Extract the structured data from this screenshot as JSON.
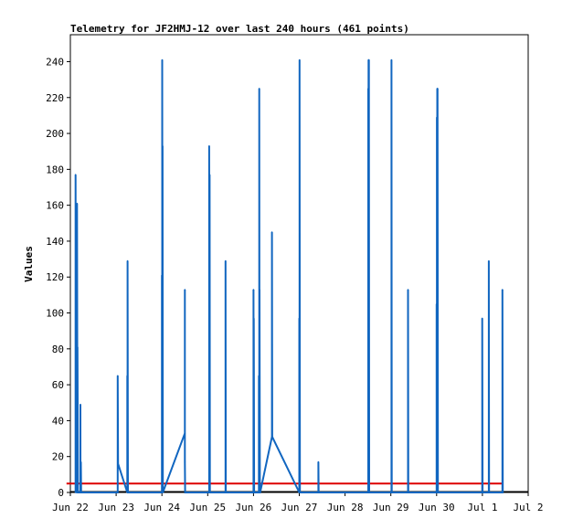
{
  "chart_data": {
    "type": "line",
    "title": "Telemetry for JF2HMJ-12 over last 240 hours (461 points)",
    "xlabel": "",
    "ylabel": "Values",
    "ylim": [
      0,
      255
    ],
    "yticks": [
      0,
      20,
      40,
      60,
      80,
      100,
      120,
      140,
      160,
      180,
      200,
      220,
      240
    ],
    "xlim": [
      "2023-06-22T00:00",
      "2023-07-02T00:00"
    ],
    "xtick_labels": [
      "Jun 22",
      "Jun 23",
      "Jun 24",
      "Jun 25",
      "Jun 26",
      "Jun 27",
      "Jun 28",
      "Jun 29",
      "Jun 30",
      "Jul 1",
      "Jul 2"
    ],
    "xtick_dates": [
      "2023-06-22T00:00",
      "2023-06-23T00:00",
      "2023-06-24T00:00",
      "2023-06-25T00:00",
      "2023-06-26T00:00",
      "2023-06-27T00:00",
      "2023-06-28T00:00",
      "2023-06-29T00:00",
      "2023-06-30T00:00",
      "2023-07-01T00:00",
      "2023-07-02T00:00"
    ],
    "grid": false,
    "colors": {
      "series_main": "#1166c0",
      "series_ref": "#dd0000",
      "baseline": "#000000"
    },
    "series": [
      {
        "values": [
          [
            "2023-06-22T02:45",
            0
          ],
          [
            "2023-06-22T02:45",
            177
          ],
          [
            "2023-06-22T03:00",
            0
          ],
          [
            "2023-06-22T03:00",
            97
          ],
          [
            "2023-06-22T03:15",
            0
          ],
          [
            "2023-06-22T03:15",
            145
          ],
          [
            "2023-06-22T03:30",
            0
          ],
          [
            "2023-06-22T03:30",
            161
          ],
          [
            "2023-06-22T03:45",
            0
          ],
          [
            "2023-06-22T03:45",
            81
          ],
          [
            "2023-06-22T04:00",
            0
          ],
          [
            "2023-06-22T05:15",
            0
          ],
          [
            "2023-06-22T05:15",
            49
          ],
          [
            "2023-06-22T05:20",
            0
          ],
          [
            "2023-06-22T05:30",
            0
          ],
          [
            "2023-06-22T05:30",
            17
          ],
          [
            "2023-06-22T05:40",
            0
          ],
          [
            "2023-06-23T00:50",
            0
          ],
          [
            "2023-06-23T00:50",
            65
          ],
          [
            "2023-06-23T01:00",
            16
          ],
          [
            "2023-06-23T05:50",
            0
          ],
          [
            "2023-06-23T05:50",
            65
          ],
          [
            "2023-06-23T06:00",
            0
          ],
          [
            "2023-06-23T06:00",
            129
          ],
          [
            "2023-06-23T06:10",
            0
          ],
          [
            "2023-06-24T00:00",
            0
          ],
          [
            "2023-06-24T00:00",
            121
          ],
          [
            "2023-06-24T00:10",
            0
          ],
          [
            "2023-06-24T00:10",
            241
          ],
          [
            "2023-06-24T00:20",
            0
          ],
          [
            "2023-06-24T00:20",
            193
          ],
          [
            "2023-06-24T00:30",
            0
          ],
          [
            "2023-06-24T12:00",
            33
          ],
          [
            "2023-06-24T12:00",
            113
          ],
          [
            "2023-06-24T12:00",
            17
          ],
          [
            "2023-06-24T12:10",
            0
          ],
          [
            "2023-06-25T00:45",
            0
          ],
          [
            "2023-06-25T00:45",
            193
          ],
          [
            "2023-06-25T01:00",
            0
          ],
          [
            "2023-06-25T01:00",
            177
          ],
          [
            "2023-06-25T01:10",
            0
          ],
          [
            "2023-06-25T09:20",
            0
          ],
          [
            "2023-06-25T09:20",
            129
          ],
          [
            "2023-06-25T09:30",
            0
          ],
          [
            "2023-06-26T00:00",
            0
          ],
          [
            "2023-06-26T00:00",
            113
          ],
          [
            "2023-06-26T00:10",
            0
          ],
          [
            "2023-06-26T00:10",
            97
          ],
          [
            "2023-06-26T00:20",
            0
          ],
          [
            "2023-06-26T02:50",
            0
          ],
          [
            "2023-06-26T02:50",
            65
          ],
          [
            "2023-06-26T03:00",
            0
          ],
          [
            "2023-06-26T03:00",
            225
          ],
          [
            "2023-06-26T03:10",
            0
          ],
          [
            "2023-06-26T03:10",
            113
          ],
          [
            "2023-06-26T03:20",
            0
          ],
          [
            "2023-06-26T03:30",
            0
          ],
          [
            "2023-06-26T09:40",
            31
          ],
          [
            "2023-06-26T09:40",
            145
          ],
          [
            "2023-06-26T09:50",
            31
          ],
          [
            "2023-06-27T00:00",
            0
          ],
          [
            "2023-06-27T00:00",
            97
          ],
          [
            "2023-06-27T00:10",
            0
          ],
          [
            "2023-06-27T00:10",
            241
          ],
          [
            "2023-06-27T00:20",
            0
          ],
          [
            "2023-06-27T10:00",
            0
          ],
          [
            "2023-06-27T10:00",
            17
          ],
          [
            "2023-06-27T10:10",
            0
          ],
          [
            "2023-06-28T12:10",
            0
          ],
          [
            "2023-06-28T12:10",
            225
          ],
          [
            "2023-06-28T12:20",
            0
          ],
          [
            "2023-06-28T12:20",
            241
          ],
          [
            "2023-06-28T12:30",
            0
          ],
          [
            "2023-06-28T12:30",
            241
          ],
          [
            "2023-06-28T12:40",
            0
          ],
          [
            "2023-06-29T00:20",
            0
          ],
          [
            "2023-06-29T00:20",
            241
          ],
          [
            "2023-06-29T00:30",
            0
          ],
          [
            "2023-06-29T09:00",
            0
          ],
          [
            "2023-06-29T09:00",
            113
          ],
          [
            "2023-06-29T09:10",
            0
          ],
          [
            "2023-06-30T00:00",
            0
          ],
          [
            "2023-06-30T00:00",
            105
          ],
          [
            "2023-06-30T00:10",
            0
          ],
          [
            "2023-06-30T00:10",
            209
          ],
          [
            "2023-06-30T00:20",
            0
          ],
          [
            "2023-06-30T00:20",
            225
          ],
          [
            "2023-06-30T00:30",
            0
          ],
          [
            "2023-06-30T00:30",
            225
          ],
          [
            "2023-06-30T00:40",
            0
          ],
          [
            "2023-06-30T23:55",
            0
          ],
          [
            "2023-06-30T23:55",
            97
          ],
          [
            "2023-07-01T00:05",
            0
          ],
          [
            "2023-07-01T03:20",
            0
          ],
          [
            "2023-07-01T03:20",
            129
          ],
          [
            "2023-07-01T03:30",
            0
          ],
          [
            "2023-07-01T10:30",
            0
          ],
          [
            "2023-07-01T10:30",
            113
          ],
          [
            "2023-07-01T10:40",
            0
          ]
        ]
      },
      {
        "values": [
          [
            "2023-06-21T22:00",
            5
          ],
          [
            "2023-07-01T10:40",
            5
          ]
        ]
      }
    ]
  }
}
